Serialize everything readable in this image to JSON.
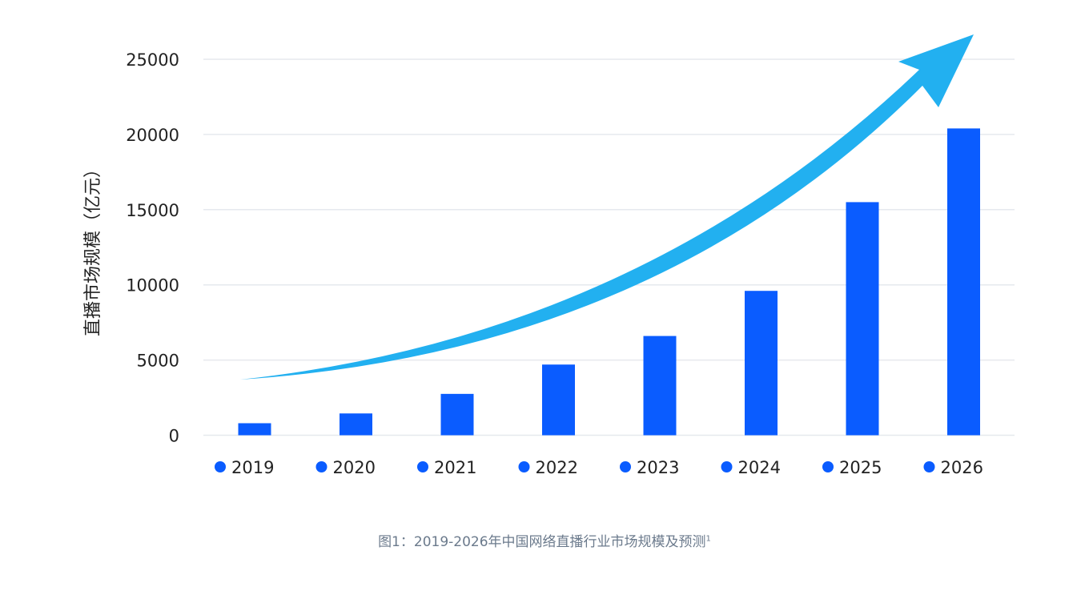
{
  "chart_data": {
    "type": "bar",
    "title": "",
    "ylabel": "直播市场规模（亿元）",
    "xlabel": "",
    "categories": [
      "2019",
      "2020",
      "2021",
      "2022",
      "2023",
      "2024",
      "2025",
      "2026"
    ],
    "values": [
      800,
      1450,
      2750,
      4700,
      6600,
      9600,
      15500,
      20400
    ],
    "ylim": [
      0,
      25000
    ],
    "yticks": [
      "0",
      "5000",
      "10000",
      "15000",
      "20000",
      "25000"
    ],
    "grid": true,
    "legend_position": "bottom",
    "annotation": "upward-trend-arrow",
    "colors": {
      "bar": "#0a5cff",
      "arrow": "#22b0f0",
      "grid": "#e6e9ee"
    }
  },
  "caption": {
    "text": "图1：2019-2026年中国网络直播行业市场规模及预测",
    "footnote": "1"
  }
}
